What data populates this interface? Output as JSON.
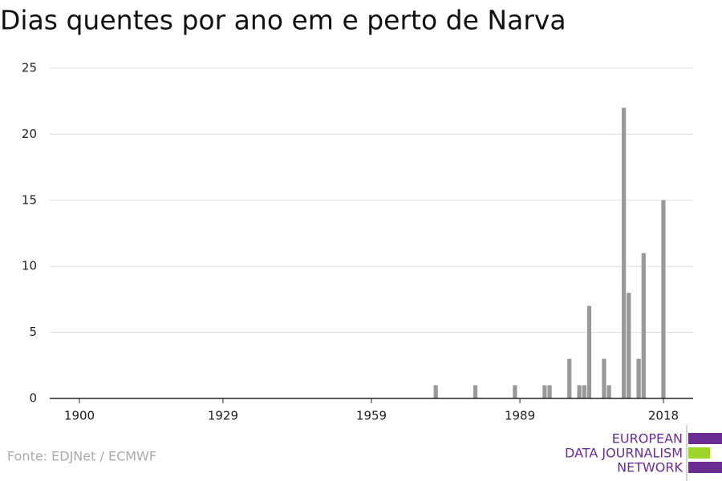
{
  "chart_data": {
    "type": "bar",
    "title": "Dias quentes por ano em e perto de Narva",
    "source": "Fonte: EDJNet / ECMWF",
    "logo": [
      "EUROPEAN",
      "DATA JOURNALISM",
      "NETWORK"
    ],
    "x": [
      1972,
      1980,
      1988,
      1994,
      1995,
      1999,
      2001,
      2002,
      2003,
      2006,
      2007,
      2010,
      2011,
      2013,
      2014,
      2018
    ],
    "values": [
      1,
      1,
      1,
      1,
      1,
      3,
      1,
      1,
      7,
      3,
      1,
      22,
      8,
      3,
      11,
      15
    ],
    "color": "#999999",
    "xlim": [
      1894,
      2024
    ],
    "xticks": [
      1900,
      1929,
      1959,
      1989,
      2018
    ],
    "ylim": [
      0,
      25
    ],
    "yticks": [
      0,
      5,
      10,
      15,
      20,
      25
    ],
    "grid": true
  }
}
